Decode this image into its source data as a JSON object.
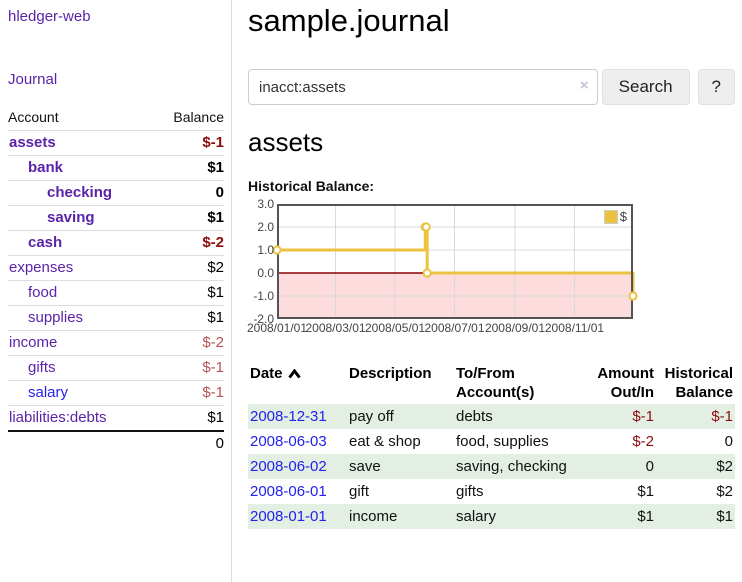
{
  "app": {
    "title": "hledger-web",
    "nav_journal": "Journal"
  },
  "colors": {
    "link_purple": "#5b24a8",
    "link_blue": "#2222ee",
    "neg_strong": "#8b0d0d",
    "neg_soft": "#b25454",
    "row_green": "#e3efe3",
    "series_gold": "#edc240",
    "chart_border": "#545454",
    "grid": "#d9d9d9",
    "zero_line": "#8b0000",
    "negative_region": "#fcdcdc"
  },
  "sidebar": {
    "header": {
      "account": "Account",
      "balance": "Balance"
    },
    "accounts": [
      {
        "name": "assets",
        "indent": 0,
        "bold": true,
        "blue": false,
        "balance": "$-1",
        "balance_style": "neg-strong"
      },
      {
        "name": "bank",
        "indent": 1,
        "bold": true,
        "blue": false,
        "balance": "$1",
        "balance_style": "pos"
      },
      {
        "name": "checking",
        "indent": 2,
        "bold": true,
        "blue": false,
        "balance": "0",
        "balance_style": "pos"
      },
      {
        "name": "saving",
        "indent": 2,
        "bold": true,
        "blue": false,
        "balance": "$1",
        "balance_style": "pos"
      },
      {
        "name": "cash",
        "indent": 1,
        "bold": true,
        "blue": false,
        "balance": "$-2",
        "balance_style": "neg-strong"
      },
      {
        "name": "expenses",
        "indent": 0,
        "bold": false,
        "blue": false,
        "balance": "$2",
        "balance_style": "pos"
      },
      {
        "name": "food",
        "indent": 1,
        "bold": false,
        "blue": false,
        "balance": "$1",
        "balance_style": "pos"
      },
      {
        "name": "supplies",
        "indent": 1,
        "bold": false,
        "blue": false,
        "balance": "$1",
        "balance_style": "pos"
      },
      {
        "name": "income",
        "indent": 0,
        "bold": false,
        "blue": false,
        "balance": "$-2",
        "balance_style": "neg"
      },
      {
        "name": "gifts",
        "indent": 1,
        "bold": false,
        "blue": false,
        "balance": "$-1",
        "balance_style": "neg"
      },
      {
        "name": "salary",
        "indent": 1,
        "bold": false,
        "blue": true,
        "balance": "$-1",
        "balance_style": "neg"
      },
      {
        "name": "liabilities:debts",
        "indent": 0,
        "bold": false,
        "blue": false,
        "balance": "$1",
        "balance_style": "pos"
      }
    ],
    "total": "0"
  },
  "header": {
    "title": "sample.journal"
  },
  "search": {
    "query": "inacct:assets",
    "clear_icon": "×",
    "button": "Search",
    "help_button": "?"
  },
  "account_page": {
    "heading": "assets",
    "chart_label": "Historical Balance:"
  },
  "chart_data": {
    "type": "line",
    "step": true,
    "title": "Historical Balance:",
    "legend": "$",
    "legend_position": "top-right",
    "grid": true,
    "x_range": [
      "2008-01-01",
      "2008-12-31"
    ],
    "ylim": [
      -2,
      3
    ],
    "y_ticks": [
      "3.0",
      "2.0",
      "1.0",
      "0.0",
      "-1.0",
      "-2.0"
    ],
    "x_ticks": [
      "2008/01/01",
      "2008/03/01",
      "2008/05/01",
      "2008/07/01",
      "2008/09/01",
      "2008/11/01"
    ],
    "series": [
      {
        "name": "$",
        "points": [
          [
            "2008-01-01",
            1
          ],
          [
            "2008-06-01",
            2
          ],
          [
            "2008-06-02",
            2
          ],
          [
            "2008-06-03",
            0
          ],
          [
            "2008-12-31",
            -1
          ]
        ]
      }
    ]
  },
  "register": {
    "columns": [
      {
        "line1": "Date",
        "line2": "",
        "sorted": "asc"
      },
      {
        "line1": "Description",
        "line2": ""
      },
      {
        "line1": "To/From",
        "line2": "Account(s)"
      },
      {
        "line1": "Amount",
        "line2": "Out/In"
      },
      {
        "line1": "Historical",
        "line2": "Balance"
      }
    ],
    "rows": [
      {
        "date": "2008-12-31",
        "description": "pay off",
        "accounts": "debts",
        "amount": "$-1",
        "balance": "$-1"
      },
      {
        "date": "2008-06-03",
        "description": "eat & shop",
        "accounts": "food, supplies",
        "amount": "$-2",
        "balance": "0"
      },
      {
        "date": "2008-06-02",
        "description": "save",
        "accounts": "saving, checking",
        "amount": "0",
        "balance": "$2"
      },
      {
        "date": "2008-06-01",
        "description": "gift",
        "accounts": "gifts",
        "amount": "$1",
        "balance": "$2"
      },
      {
        "date": "2008-01-01",
        "description": "income",
        "accounts": "salary",
        "amount": "$1",
        "balance": "$1"
      }
    ]
  }
}
